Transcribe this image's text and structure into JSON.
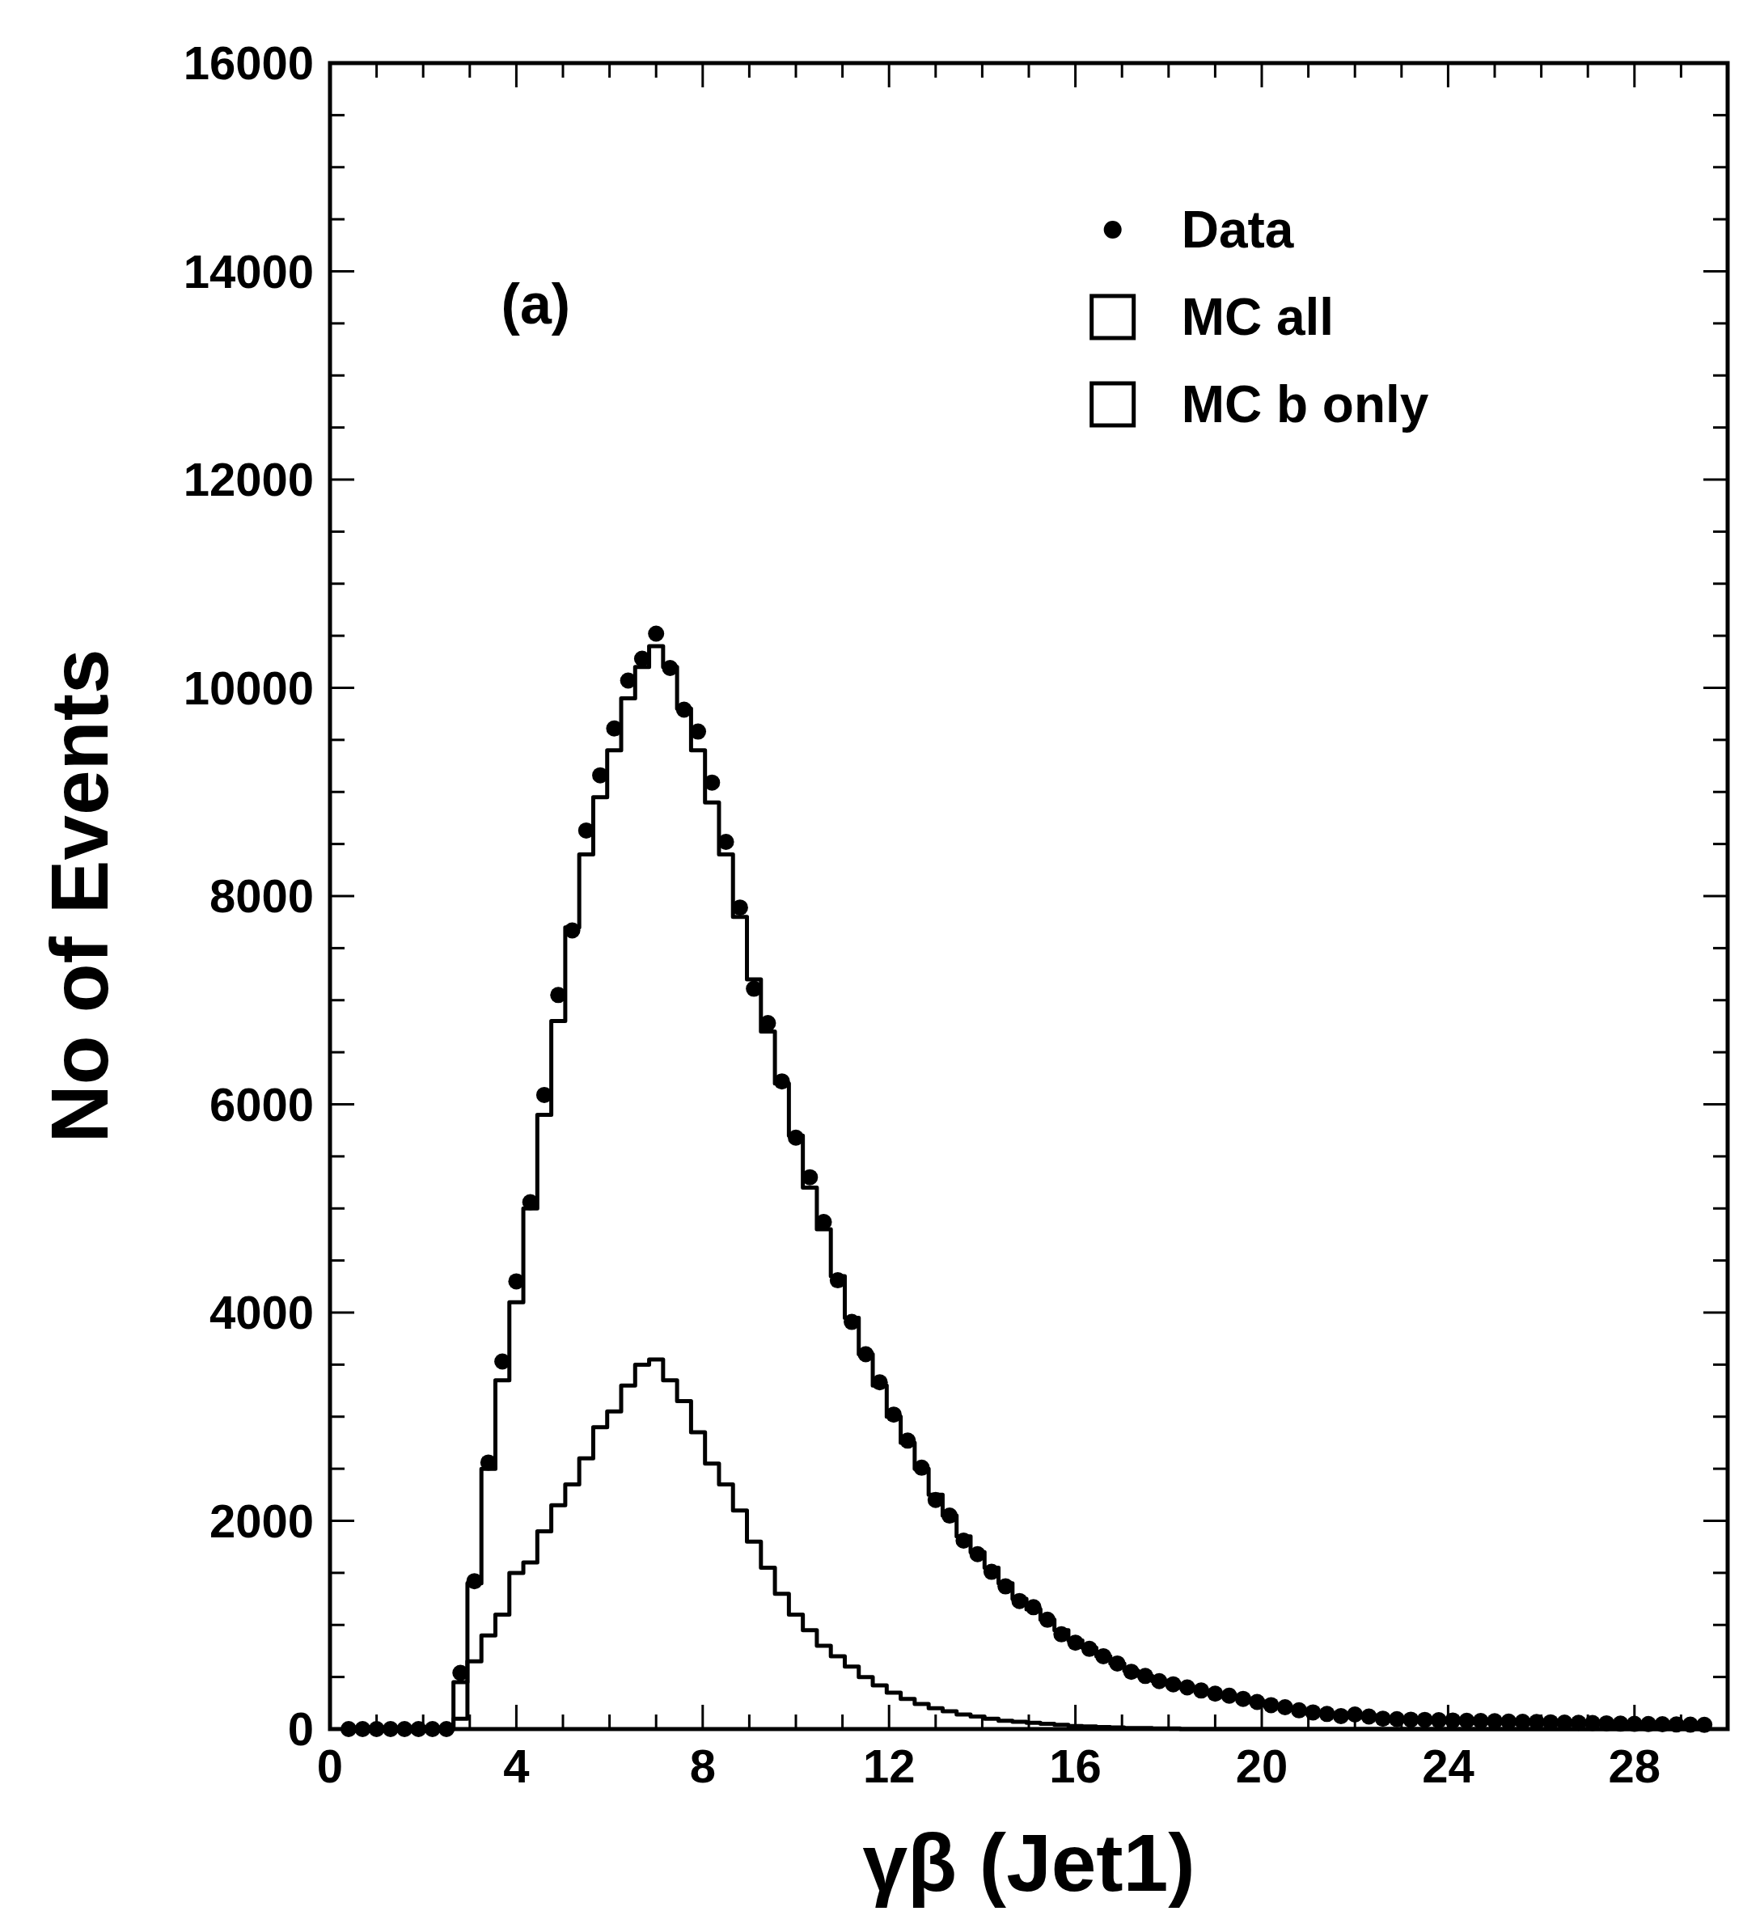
{
  "chart_data": {
    "type": "step",
    "xlabel": "γβ (Jet1)",
    "ylabel": "No of Events",
    "annotations": [
      "(a)"
    ],
    "xlim": [
      0,
      30
    ],
    "ylim": [
      0,
      16000
    ],
    "xticks": [
      0,
      4,
      8,
      12,
      16,
      20,
      24,
      28
    ],
    "yticks": [
      0,
      2000,
      4000,
      6000,
      8000,
      10000,
      12000,
      14000,
      16000
    ],
    "legend": "top right",
    "x": [
      0.4,
      0.7,
      1,
      1.3,
      1.6,
      1.9,
      2.2,
      2.5,
      2.8,
      3.1,
      3.4,
      3.7,
      4,
      4.3,
      4.6,
      4.9,
      5.2,
      5.5,
      5.8,
      6.1,
      6.4,
      6.7,
      7,
      7.3,
      7.6,
      7.9,
      8.2,
      8.5,
      8.8,
      9.1,
      9.4,
      9.7,
      10,
      10.3,
      10.6,
      10.9,
      11.2,
      11.5,
      11.8,
      12.1,
      12.4,
      12.7,
      13,
      13.3,
      13.6,
      13.9,
      14.2,
      14.5,
      14.8,
      15.1,
      15.4,
      15.7,
      16,
      16.3,
      16.6,
      16.9,
      17.2,
      17.5,
      17.8,
      18.1,
      18.4,
      18.7,
      19,
      19.3,
      19.6,
      19.9,
      20.2,
      20.5,
      20.8,
      21.1,
      21.4,
      21.7,
      22,
      22.3,
      22.6,
      22.9,
      23.2,
      23.5,
      23.8,
      24.1,
      24.4,
      24.7,
      25,
      25.3,
      25.6,
      25.9,
      26.2,
      26.5,
      26.8,
      27.1,
      27.4,
      27.7,
      28,
      28.3,
      28.6,
      28.9,
      29.2,
      29.5
    ],
    "series": [
      {
        "name": "Data",
        "type": "scatter",
        "marker": "circle",
        "color": "#000000",
        "values": [
          0,
          0,
          0,
          0,
          0,
          0,
          0,
          0,
          540,
          1420,
          2560,
          3530,
          4300,
          5060,
          6090,
          7050,
          7670,
          8630,
          9160,
          9610,
          10070,
          10280,
          10520,
          10190,
          9790,
          9580,
          9090,
          8520,
          7890,
          7110,
          6780,
          6220,
          5680,
          5300,
          4870,
          4310,
          3910,
          3600,
          3330,
          3020,
          2770,
          2510,
          2200,
          2050,
          1810,
          1680,
          1510,
          1370,
          1230,
          1170,
          1050,
          910,
          830,
          770,
          700,
          630,
          550,
          510,
          460,
          430,
          400,
          370,
          340,
          320,
          290,
          260,
          230,
          210,
          180,
          160,
          145,
          125,
          140,
          120,
          100,
          95,
          90,
          88,
          85,
          82,
          80,
          78,
          75,
          72,
          70,
          68,
          65,
          62,
          60,
          58,
          55,
          52,
          50,
          48,
          46,
          44,
          42,
          40
        ]
      },
      {
        "name": "MC all",
        "color": "#000000",
        "values": [
          0,
          0,
          0,
          0,
          0,
          0,
          0,
          0,
          450,
          1400,
          2500,
          3350,
          4100,
          5000,
          5900,
          6800,
          7700,
          8400,
          8950,
          9400,
          9900,
          10200,
          10400,
          10200,
          9800,
          9400,
          8900,
          8400,
          7800,
          7200,
          6700,
          6200,
          5700,
          5200,
          4800,
          4350,
          3950,
          3600,
          3300,
          3000,
          2750,
          2500,
          2250,
          2050,
          1850,
          1700,
          1550,
          1400,
          1250,
          1150,
          1050,
          950,
          850,
          780,
          700,
          630,
          560,
          510,
          460,
          430,
          400,
          370,
          340,
          310,
          290,
          260,
          230,
          210,
          185,
          165,
          150,
          135,
          125,
          115,
          105,
          95,
          90,
          88,
          85,
          82,
          80,
          78,
          75,
          72,
          70,
          68,
          65,
          62,
          60,
          58,
          55,
          52,
          50,
          48,
          46,
          44,
          42,
          40
        ]
      },
      {
        "name": "MC b only",
        "color": "#000000",
        "values": [
          0,
          0,
          0,
          0,
          0,
          0,
          0,
          0,
          100,
          650,
          900,
          1100,
          1500,
          1600,
          1900,
          2150,
          2350,
          2600,
          2900,
          3050,
          3300,
          3500,
          3550,
          3350,
          3150,
          2850,
          2550,
          2350,
          2100,
          1800,
          1550,
          1300,
          1100,
          950,
          800,
          700,
          600,
          500,
          420,
          350,
          290,
          240,
          200,
          170,
          140,
          120,
          100,
          80,
          70,
          60,
          50,
          40,
          30,
          25,
          20,
          15,
          10,
          10,
          5,
          5,
          0,
          0,
          0,
          0,
          0,
          0,
          0,
          0,
          0,
          0,
          0,
          0,
          0,
          0,
          0,
          0,
          0,
          0,
          0,
          0,
          0,
          0,
          0,
          0,
          0,
          0,
          0,
          0,
          0,
          0,
          0,
          0,
          0,
          0,
          0,
          0,
          0,
          0
        ]
      }
    ]
  }
}
